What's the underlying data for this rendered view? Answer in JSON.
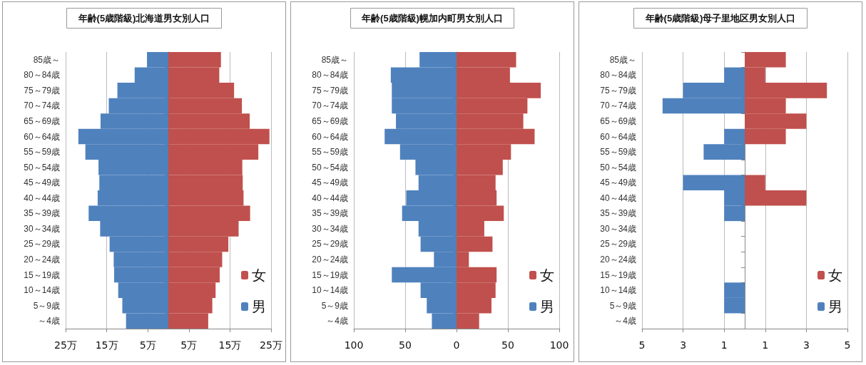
{
  "chart_data": [
    {
      "type": "bar",
      "title": "年齢(5歳階級)北海道男女別人口",
      "orientation": "horizontal",
      "stacked": true,
      "categories": [
        "85歳～",
        "80～84歳",
        "75～79歳",
        "70～74歳",
        "65～69歳",
        "60～64歳",
        "55～59歳",
        "50～54歳",
        "45～49歳",
        "40～44歳",
        "35～39歳",
        "30～34歳",
        "25～29歳",
        "20～24歳",
        "15～19歳",
        "10～14歳",
        "5～9歳",
        "～4歳"
      ],
      "series": [
        {
          "name": "男",
          "color": "#4f81bd",
          "values": [
            -5.2,
            -8.2,
            -12.4,
            -14.5,
            -16.5,
            -21.9,
            -20.2,
            -17.0,
            -16.8,
            -17.2,
            -19.4,
            -16.6,
            -14.3,
            -13.3,
            -13.2,
            -12.2,
            -11.2,
            -10.3
          ]
        },
        {
          "name": "女",
          "color": "#c0504d",
          "values": [
            12.8,
            12.4,
            16.0,
            17.9,
            19.8,
            24.6,
            21.9,
            18.0,
            18.1,
            18.3,
            19.9,
            17.1,
            14.6,
            13.1,
            12.5,
            11.5,
            10.7,
            9.7
          ]
        }
      ],
      "xlim": [
        -25,
        25
      ],
      "xticks": [
        {
          "value": -25,
          "label": "25万"
        },
        {
          "value": -15,
          "label": "15万"
        },
        {
          "value": -5,
          "label": "5万"
        },
        {
          "value": 5,
          "label": "5万"
        },
        {
          "value": 15,
          "label": "15万"
        },
        {
          "value": 25,
          "label": "25万"
        }
      ],
      "grid": "x",
      "legend": "right"
    },
    {
      "type": "bar",
      "title": "年齢(5歳階級)幌加内町男女別人口",
      "orientation": "horizontal",
      "stacked": true,
      "categories": [
        "85歳～",
        "80～84歳",
        "75～79歳",
        "70～74歳",
        "65～69歳",
        "60～64歳",
        "55～59歳",
        "50～54歳",
        "45～49歳",
        "40～44歳",
        "35～39歳",
        "30～34歳",
        "25～29歳",
        "20～24歳",
        "15～19歳",
        "10～14歳",
        "5～9歳",
        "～4歳"
      ],
      "series": [
        {
          "name": "男",
          "color": "#4f81bd",
          "values": [
            -36,
            -64,
            -63,
            -63,
            -59,
            -70,
            -55,
            -40,
            -37,
            -49,
            -53,
            -37,
            -35,
            -22,
            -63,
            -35,
            -29,
            -24
          ]
        },
        {
          "name": "女",
          "color": "#c0504d",
          "values": [
            58,
            52,
            82,
            69,
            65,
            76,
            53,
            45,
            38,
            39,
            46,
            27,
            35,
            12,
            39,
            38,
            34,
            22
          ]
        }
      ],
      "xlim": [
        -100,
        100
      ],
      "xticks": [
        {
          "value": -100,
          "label": "100"
        },
        {
          "value": -50,
          "label": "50"
        },
        0,
        50,
        100
      ],
      "grid": "x",
      "legend": "right"
    },
    {
      "type": "bar",
      "title": "年齢(5歳階級)母子里地区男女別人口",
      "orientation": "horizontal",
      "stacked": true,
      "categories": [
        "85歳～",
        "80～84歳",
        "75～79歳",
        "70～74歳",
        "65～69歳",
        "60～64歳",
        "55～59歳",
        "50～54歳",
        "45～49歳",
        "40～44歳",
        "35～39歳",
        "30～34歳",
        "25～29歳",
        "20～24歳",
        "15～19歳",
        "10～14歳",
        "5～9歳",
        "～4歳"
      ],
      "series": [
        {
          "name": "男",
          "color": "#4f81bd",
          "values": [
            0,
            -1,
            -3,
            -4,
            0,
            -1,
            -2,
            0,
            -3,
            -1,
            -1,
            0,
            0,
            0,
            0,
            -1,
            -1,
            0
          ]
        },
        {
          "name": "女",
          "color": "#c0504d",
          "values": [
            2,
            1,
            4,
            2,
            3,
            2,
            0,
            0,
            1,
            3,
            0,
            0,
            0,
            0,
            0,
            0,
            0,
            0
          ]
        }
      ],
      "xlim": [
        -5,
        5
      ],
      "xticks": [
        {
          "value": -5,
          "label": "5"
        },
        {
          "value": -3,
          "label": "3"
        },
        {
          "value": -1,
          "label": "1"
        },
        {
          "value": 1,
          "label": "1"
        },
        3,
        5
      ],
      "grid": "x",
      "legend": "right"
    }
  ]
}
